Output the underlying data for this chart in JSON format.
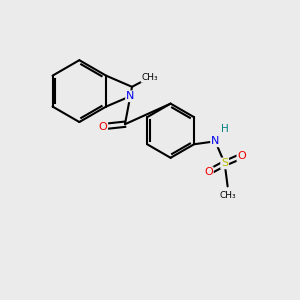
{
  "background_color": "#ebebeb",
  "atom_colors": {
    "C": "#000000",
    "N": "#0000ee",
    "O": "#ee0000",
    "S": "#bbbb00",
    "H": "#008080"
  },
  "figsize": [
    3.0,
    3.0
  ],
  "dpi": 100
}
